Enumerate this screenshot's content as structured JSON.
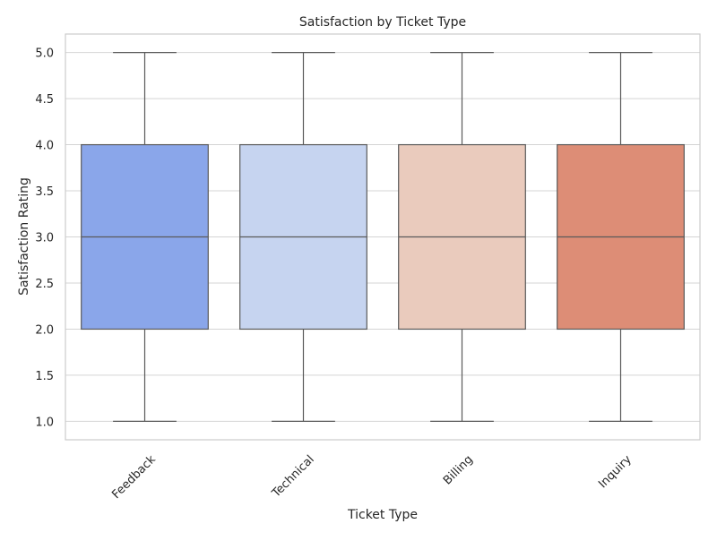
{
  "chart_data": {
    "type": "box",
    "title": "Satisfaction by Ticket Type",
    "xlabel": "Ticket Type",
    "ylabel": "Satisfaction Rating",
    "ylim": [
      0.8,
      5.2
    ],
    "yticks": [
      "1.0",
      "1.5",
      "2.0",
      "2.5",
      "3.0",
      "3.5",
      "4.0",
      "4.5",
      "5.0"
    ],
    "grid": true,
    "categories": [
      "Feedback",
      "Technical",
      "Billing",
      "Inquiry"
    ],
    "boxes": [
      {
        "category": "Feedback",
        "min": 1,
        "q1": 2,
        "median": 3,
        "q3": 4,
        "max": 5,
        "color": "#8aa6ea"
      },
      {
        "category": "Technical",
        "min": 1,
        "q1": 2,
        "median": 3,
        "q3": 4,
        "max": 5,
        "color": "#c6d4f0"
      },
      {
        "category": "Billing",
        "min": 1,
        "q1": 2,
        "median": 3,
        "q3": 4,
        "max": 5,
        "color": "#eacbbd"
      },
      {
        "category": "Inquiry",
        "min": 1,
        "q1": 2,
        "median": 3,
        "q3": 4,
        "max": 5,
        "color": "#dd8d76"
      }
    ]
  }
}
